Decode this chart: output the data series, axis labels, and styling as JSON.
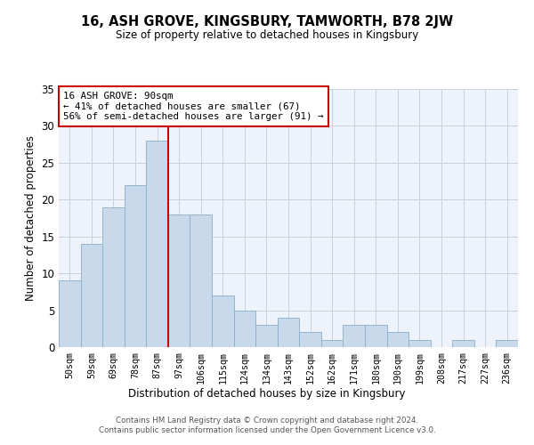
{
  "title": "16, ASH GROVE, KINGSBURY, TAMWORTH, B78 2JW",
  "subtitle": "Size of property relative to detached houses in Kingsbury",
  "xlabel": "Distribution of detached houses by size in Kingsbury",
  "ylabel": "Number of detached properties",
  "categories": [
    "50sqm",
    "59sqm",
    "69sqm",
    "78sqm",
    "87sqm",
    "97sqm",
    "106sqm",
    "115sqm",
    "124sqm",
    "134sqm",
    "143sqm",
    "152sqm",
    "162sqm",
    "171sqm",
    "180sqm",
    "190sqm",
    "199sqm",
    "208sqm",
    "217sqm",
    "227sqm",
    "236sqm"
  ],
  "values": [
    9,
    14,
    19,
    22,
    28,
    18,
    18,
    7,
    5,
    3,
    4,
    2,
    1,
    3,
    3,
    2,
    1,
    0,
    1,
    0,
    1
  ],
  "bar_color": "#c9d9ec",
  "bar_edge_color": "#8aaec8",
  "vline_x_index": 4,
  "vline_color": "#cc0000",
  "annotation_text": "16 ASH GROVE: 90sqm\n← 41% of detached houses are smaller (67)\n56% of semi-detached houses are larger (91) →",
  "annotation_box_color": "#ffffff",
  "annotation_box_edge": "#cc0000",
  "ylim": [
    0,
    35
  ],
  "yticks": [
    0,
    5,
    10,
    15,
    20,
    25,
    30,
    35
  ],
  "grid_color": "#c8d0e0",
  "background_color": "#eef2fa",
  "footer1": "Contains HM Land Registry data © Crown copyright and database right 2024.",
  "footer2": "Contains public sector information licensed under the Open Government Licence v3.0."
}
